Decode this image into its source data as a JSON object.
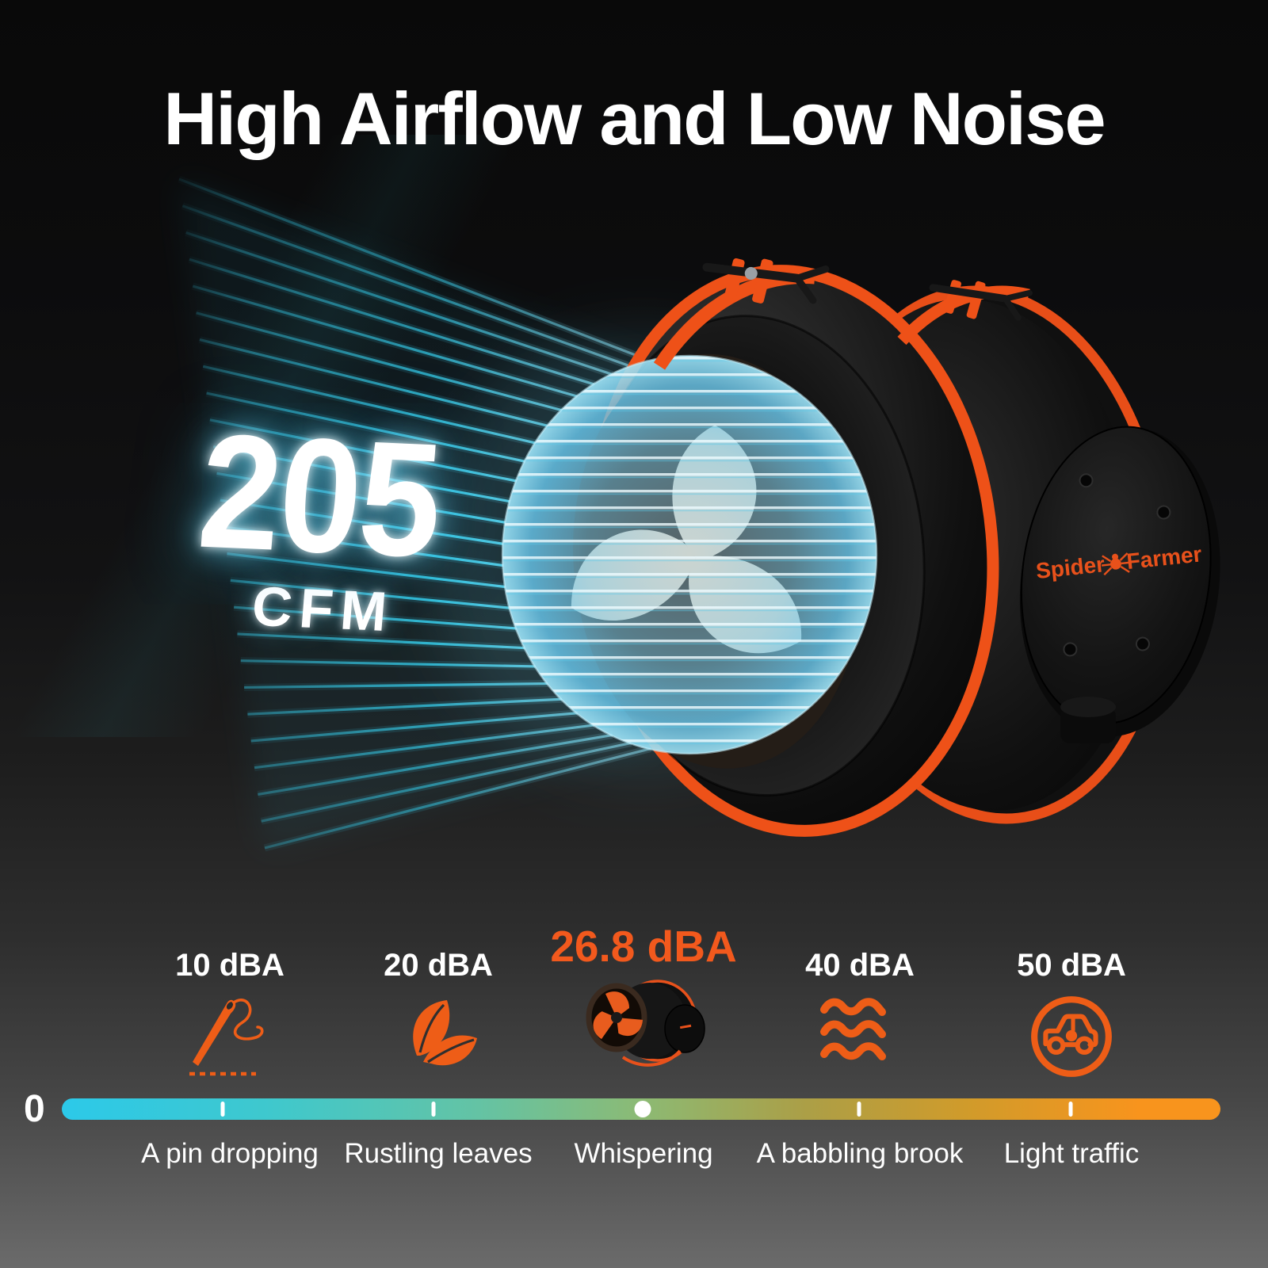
{
  "title": "High Airflow and Low Noise",
  "airflow": {
    "value": "205",
    "unit": "CFM"
  },
  "brand": {
    "word1": "Spider",
    "word2": "Farmer"
  },
  "noise_scale": {
    "origin": "0",
    "levels": [
      {
        "db": "10 dBA",
        "description": "A pin dropping",
        "icon": "needle-icon",
        "highlight": false
      },
      {
        "db": "20 dBA",
        "description": "Rustling leaves",
        "icon": "leaves-icon",
        "highlight": false
      },
      {
        "db": "26.8 dBA",
        "description": "Whispering",
        "icon": "product-fan-image",
        "highlight": true
      },
      {
        "db": "40 dBA",
        "description": "A babbling brook",
        "icon": "waves-icon",
        "highlight": false
      },
      {
        "db": "50 dBA",
        "description": "Light traffic",
        "icon": "car-icon",
        "highlight": false
      }
    ],
    "colors": {
      "accent_orange": "#f2591d",
      "beam_cyan": "#36d3f2",
      "bar_gradient": [
        "#2cc9e9",
        "#3fc8cd",
        "#64c3a4",
        "#8cba74",
        "#ab9f47",
        "#d09b2b",
        "#f8941d"
      ]
    }
  }
}
